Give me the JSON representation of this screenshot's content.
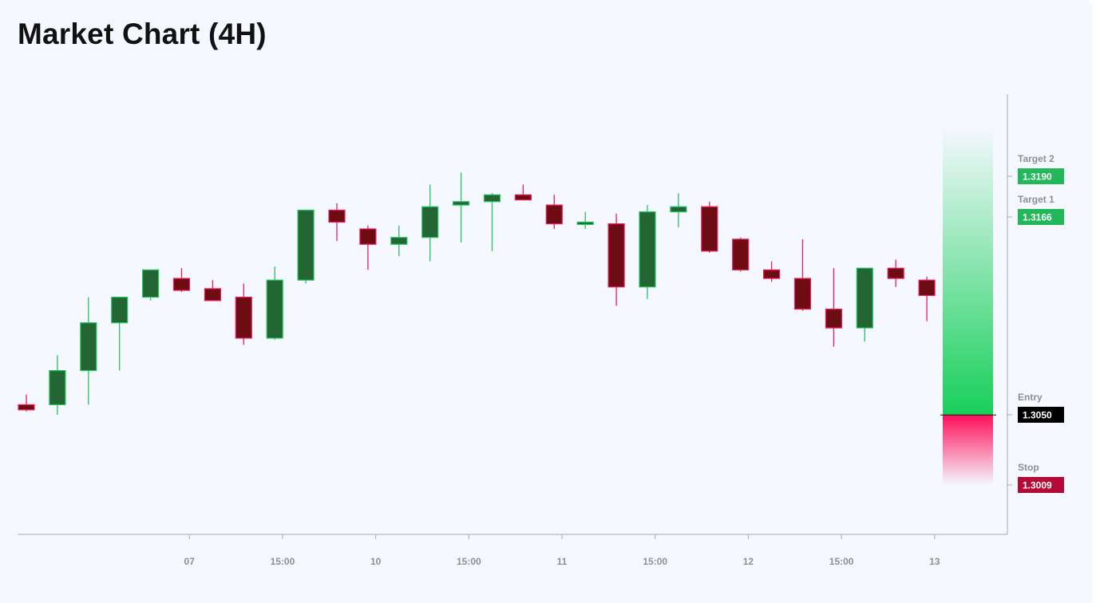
{
  "page": {
    "title": "Market Chart (4H)"
  },
  "chart_data": {
    "type": "candlestick",
    "title": "Market Chart (4H)",
    "x_tick_labels": [
      "07",
      "15:00",
      "10",
      "15:00",
      "11",
      "15:00",
      "12",
      "15:00",
      "13"
    ],
    "x_tick_candle_index": [
      5.25,
      8.25,
      11.25,
      14.25,
      17.25,
      20.25,
      23.25,
      26.25,
      29.25
    ],
    "ylim": [
      1.298,
      1.3238
    ],
    "candles": [
      {
        "open": 1.3056,
        "high": 1.3062,
        "low": 1.3052,
        "close": 1.3053
      },
      {
        "open": 1.3056,
        "high": 1.3085,
        "low": 1.305,
        "close": 1.3076
      },
      {
        "open": 1.3076,
        "high": 1.3119,
        "low": 1.3056,
        "close": 1.3104
      },
      {
        "open": 1.3104,
        "high": 1.3118,
        "low": 1.3076,
        "close": 1.3119
      },
      {
        "open": 1.3119,
        "high": 1.3133,
        "low": 1.3117,
        "close": 1.3135
      },
      {
        "open": 1.313,
        "high": 1.3136,
        "low": 1.3122,
        "close": 1.3123
      },
      {
        "open": 1.3124,
        "high": 1.3129,
        "low": 1.3119,
        "close": 1.3117
      },
      {
        "open": 1.3119,
        "high": 1.3127,
        "low": 1.3091,
        "close": 1.3095
      },
      {
        "open": 1.3095,
        "high": 1.3137,
        "low": 1.3094,
        "close": 1.3129
      },
      {
        "open": 1.3129,
        "high": 1.317,
        "low": 1.3127,
        "close": 1.317
      },
      {
        "open": 1.317,
        "high": 1.3174,
        "low": 1.3152,
        "close": 1.3163
      },
      {
        "open": 1.3159,
        "high": 1.3161,
        "low": 1.3135,
        "close": 1.315
      },
      {
        "open": 1.315,
        "high": 1.3161,
        "low": 1.3143,
        "close": 1.3154
      },
      {
        "open": 1.3154,
        "high": 1.3185,
        "low": 1.314,
        "close": 1.3172
      },
      {
        "open": 1.3173,
        "high": 1.3192,
        "low": 1.3151,
        "close": 1.3175
      },
      {
        "open": 1.3175,
        "high": 1.318,
        "low": 1.3146,
        "close": 1.3179
      },
      {
        "open": 1.3179,
        "high": 1.3185,
        "low": 1.3176,
        "close": 1.3176
      },
      {
        "open": 1.3173,
        "high": 1.3179,
        "low": 1.3159,
        "close": 1.3162
      },
      {
        "open": 1.3162,
        "high": 1.3169,
        "low": 1.3159,
        "close": 1.3163
      },
      {
        "open": 1.3162,
        "high": 1.3168,
        "low": 1.3114,
        "close": 1.3125
      },
      {
        "open": 1.3125,
        "high": 1.3173,
        "low": 1.3118,
        "close": 1.3169
      },
      {
        "open": 1.3169,
        "high": 1.318,
        "low": 1.316,
        "close": 1.3172
      },
      {
        "open": 1.3172,
        "high": 1.3175,
        "low": 1.3145,
        "close": 1.3146
      },
      {
        "open": 1.3153,
        "high": 1.3154,
        "low": 1.3134,
        "close": 1.3135
      },
      {
        "open": 1.3135,
        "high": 1.314,
        "low": 1.3128,
        "close": 1.313
      },
      {
        "open": 1.313,
        "high": 1.3153,
        "low": 1.3111,
        "close": 1.3112
      },
      {
        "open": 1.3112,
        "high": 1.3136,
        "low": 1.309,
        "close": 1.3101
      },
      {
        "open": 1.3101,
        "high": 1.3136,
        "low": 1.3093,
        "close": 1.3136
      },
      {
        "open": 1.3136,
        "high": 1.3141,
        "low": 1.3125,
        "close": 1.313
      },
      {
        "open": 1.3129,
        "high": 1.3131,
        "low": 1.3105,
        "close": 1.312
      }
    ],
    "levels": [
      {
        "name": "Target 2",
        "value": 1.319,
        "display": "1.3190",
        "color": "#22b85a"
      },
      {
        "name": "Target 1",
        "value": 1.3166,
        "display": "1.3166",
        "color": "#22b85a"
      },
      {
        "name": "Entry",
        "value": 1.305,
        "display": "1.3050",
        "color": "#000000"
      },
      {
        "name": "Stop",
        "value": 1.3009,
        "display": "1.3009",
        "color": "#b5093a"
      }
    ],
    "colors": {
      "bull_fill": "#236634",
      "bull_stroke": "#22c55e",
      "bear_fill": "#6e0c14",
      "bear_stroke": "#f01c5c",
      "profit_zone": "#18cf5a",
      "loss_zone": "#ff0f5a",
      "axis": "#a9a9b2"
    }
  }
}
